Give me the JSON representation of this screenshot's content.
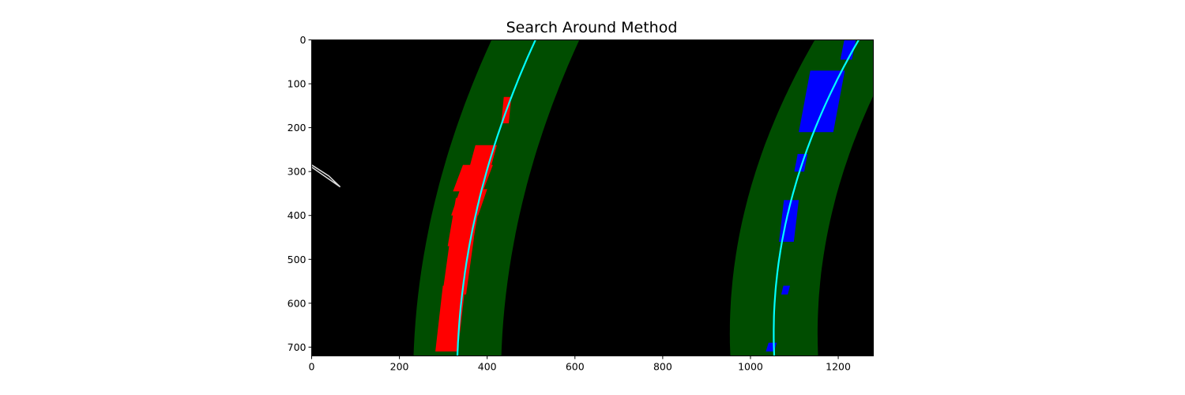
{
  "chart_data": {
    "type": "image",
    "title": "Search Around Method",
    "image_size": [
      1280,
      720
    ],
    "xlim": [
      0,
      1280
    ],
    "ylim": [
      720,
      0
    ],
    "x_ticks": [
      0,
      200,
      400,
      600,
      800,
      1000,
      1200
    ],
    "y_ticks": [
      0,
      100,
      200,
      300,
      400,
      500,
      600,
      700
    ],
    "colors": {
      "background": "#000000",
      "search_window": "#004d00",
      "left_lane_pixels": "#ff0000",
      "right_lane_pixels": "#0000ff",
      "polynomial_fit": "#00ffff",
      "noise_pixels": "#dddddd"
    },
    "search_margin": 100,
    "left_fit": {
      "y": [
        0,
        200,
        400,
        600,
        720
      ],
      "x": [
        510,
        430,
        373,
        341,
        332
      ]
    },
    "right_fit": {
      "y": [
        0,
        200,
        400,
        600,
        720
      ],
      "x": [
        1248,
        1145,
        1085,
        1058,
        1052
      ]
    },
    "left_lane_pixels": [
      {
        "y": [
          130,
          190
        ],
        "x": [
          432,
          455
        ]
      },
      {
        "y": [
          240,
          300
        ],
        "x": [
          357,
          422
        ]
      },
      {
        "y": [
          285,
          345
        ],
        "x": [
          322,
          413
        ]
      },
      {
        "y": [
          340,
          400
        ],
        "x": [
          318,
          400
        ]
      },
      {
        "y": [
          360,
          470
        ],
        "x": [
          310,
          385
        ]
      },
      {
        "y": [
          450,
          580
        ],
        "x": [
          298,
          370
        ]
      },
      {
        "y": [
          560,
          710
        ],
        "x": [
          282,
          350
        ]
      }
    ],
    "right_lane_pixels": [
      {
        "y": [
          0,
          45
        ],
        "x": [
          1205,
          1240
        ]
      },
      {
        "y": [
          70,
          210
        ],
        "x": [
          1110,
          1215
        ]
      },
      {
        "y": [
          260,
          300
        ],
        "x": [
          1100,
          1130
        ]
      },
      {
        "y": [
          365,
          460
        ],
        "x": [
          1065,
          1110
        ]
      },
      {
        "y": [
          560,
          580
        ],
        "x": [
          1070,
          1090
        ]
      },
      {
        "y": [
          690,
          710
        ],
        "x": [
          1035,
          1060
        ]
      }
    ],
    "noise_pixels": [
      {
        "y": [
          285,
          335
        ],
        "x": [
          0,
          65
        ]
      }
    ]
  }
}
